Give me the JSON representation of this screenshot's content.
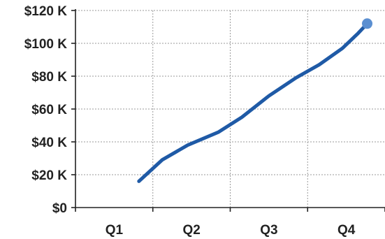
{
  "chart_data": {
    "type": "line",
    "title": "",
    "xlabel": "",
    "ylabel": "",
    "categories": [
      "Q1",
      "Q2",
      "Q3",
      "Q4"
    ],
    "yticks": [
      "$0",
      "$20 K",
      "$40 K",
      "$60 K",
      "$80 K",
      "$100 K",
      "$120 K"
    ],
    "ytick_values": [
      0,
      20,
      40,
      60,
      80,
      100,
      120
    ],
    "ylim": [
      0,
      120
    ],
    "xlim": [
      0,
      4
    ],
    "grid": "dotted",
    "series": [
      {
        "color": "#1f5aa6",
        "marker_color": "#5b8fd1",
        "points": [
          {
            "x": 0.82,
            "y": 16
          },
          {
            "x": 1.12,
            "y": 29
          },
          {
            "x": 1.45,
            "y": 38
          },
          {
            "x": 1.85,
            "y": 46
          },
          {
            "x": 2.15,
            "y": 55
          },
          {
            "x": 2.5,
            "y": 68
          },
          {
            "x": 2.85,
            "y": 79
          },
          {
            "x": 3.15,
            "y": 87
          },
          {
            "x": 3.45,
            "y": 97
          },
          {
            "x": 3.65,
            "y": 106
          },
          {
            "x": 3.77,
            "y": 112
          }
        ]
      }
    ]
  }
}
